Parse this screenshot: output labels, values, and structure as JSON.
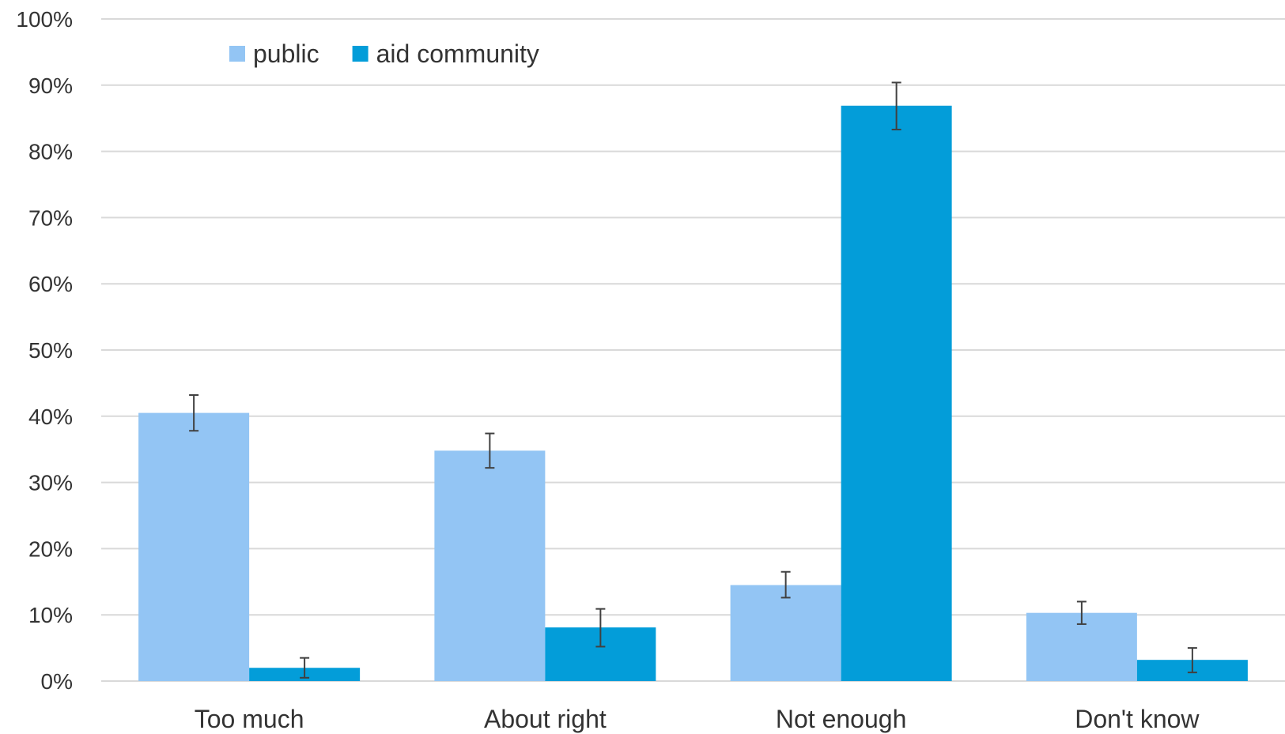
{
  "chart_data": {
    "type": "bar",
    "categories": [
      "Too much",
      "About right",
      "Not enough",
      "Don't know"
    ],
    "series": [
      {
        "name": "public",
        "color": "#93c5f4",
        "values": [
          40.5,
          34.8,
          14.5,
          10.3
        ],
        "error": [
          [
            37.8,
            43.2
          ],
          [
            32.2,
            37.4
          ],
          [
            12.6,
            16.5
          ],
          [
            8.6,
            12.0
          ]
        ]
      },
      {
        "name": "aid community",
        "color": "#039dd9",
        "values": [
          2.0,
          8.1,
          86.9,
          3.2
        ],
        "error": [
          [
            0.5,
            3.5
          ],
          [
            5.2,
            10.9
          ],
          [
            83.3,
            90.4
          ],
          [
            1.3,
            5.0
          ]
        ]
      }
    ],
    "ylim": [
      0,
      100
    ],
    "yticks": [
      "0%",
      "10%",
      "20%",
      "30%",
      "40%",
      "50%",
      "60%",
      "70%",
      "80%",
      "90%",
      "100%"
    ],
    "grid": true,
    "legend_position": "top-left",
    "colors": {
      "gridline": "#d9d9d9",
      "error_bar": "#404040",
      "text": "#333333"
    }
  }
}
